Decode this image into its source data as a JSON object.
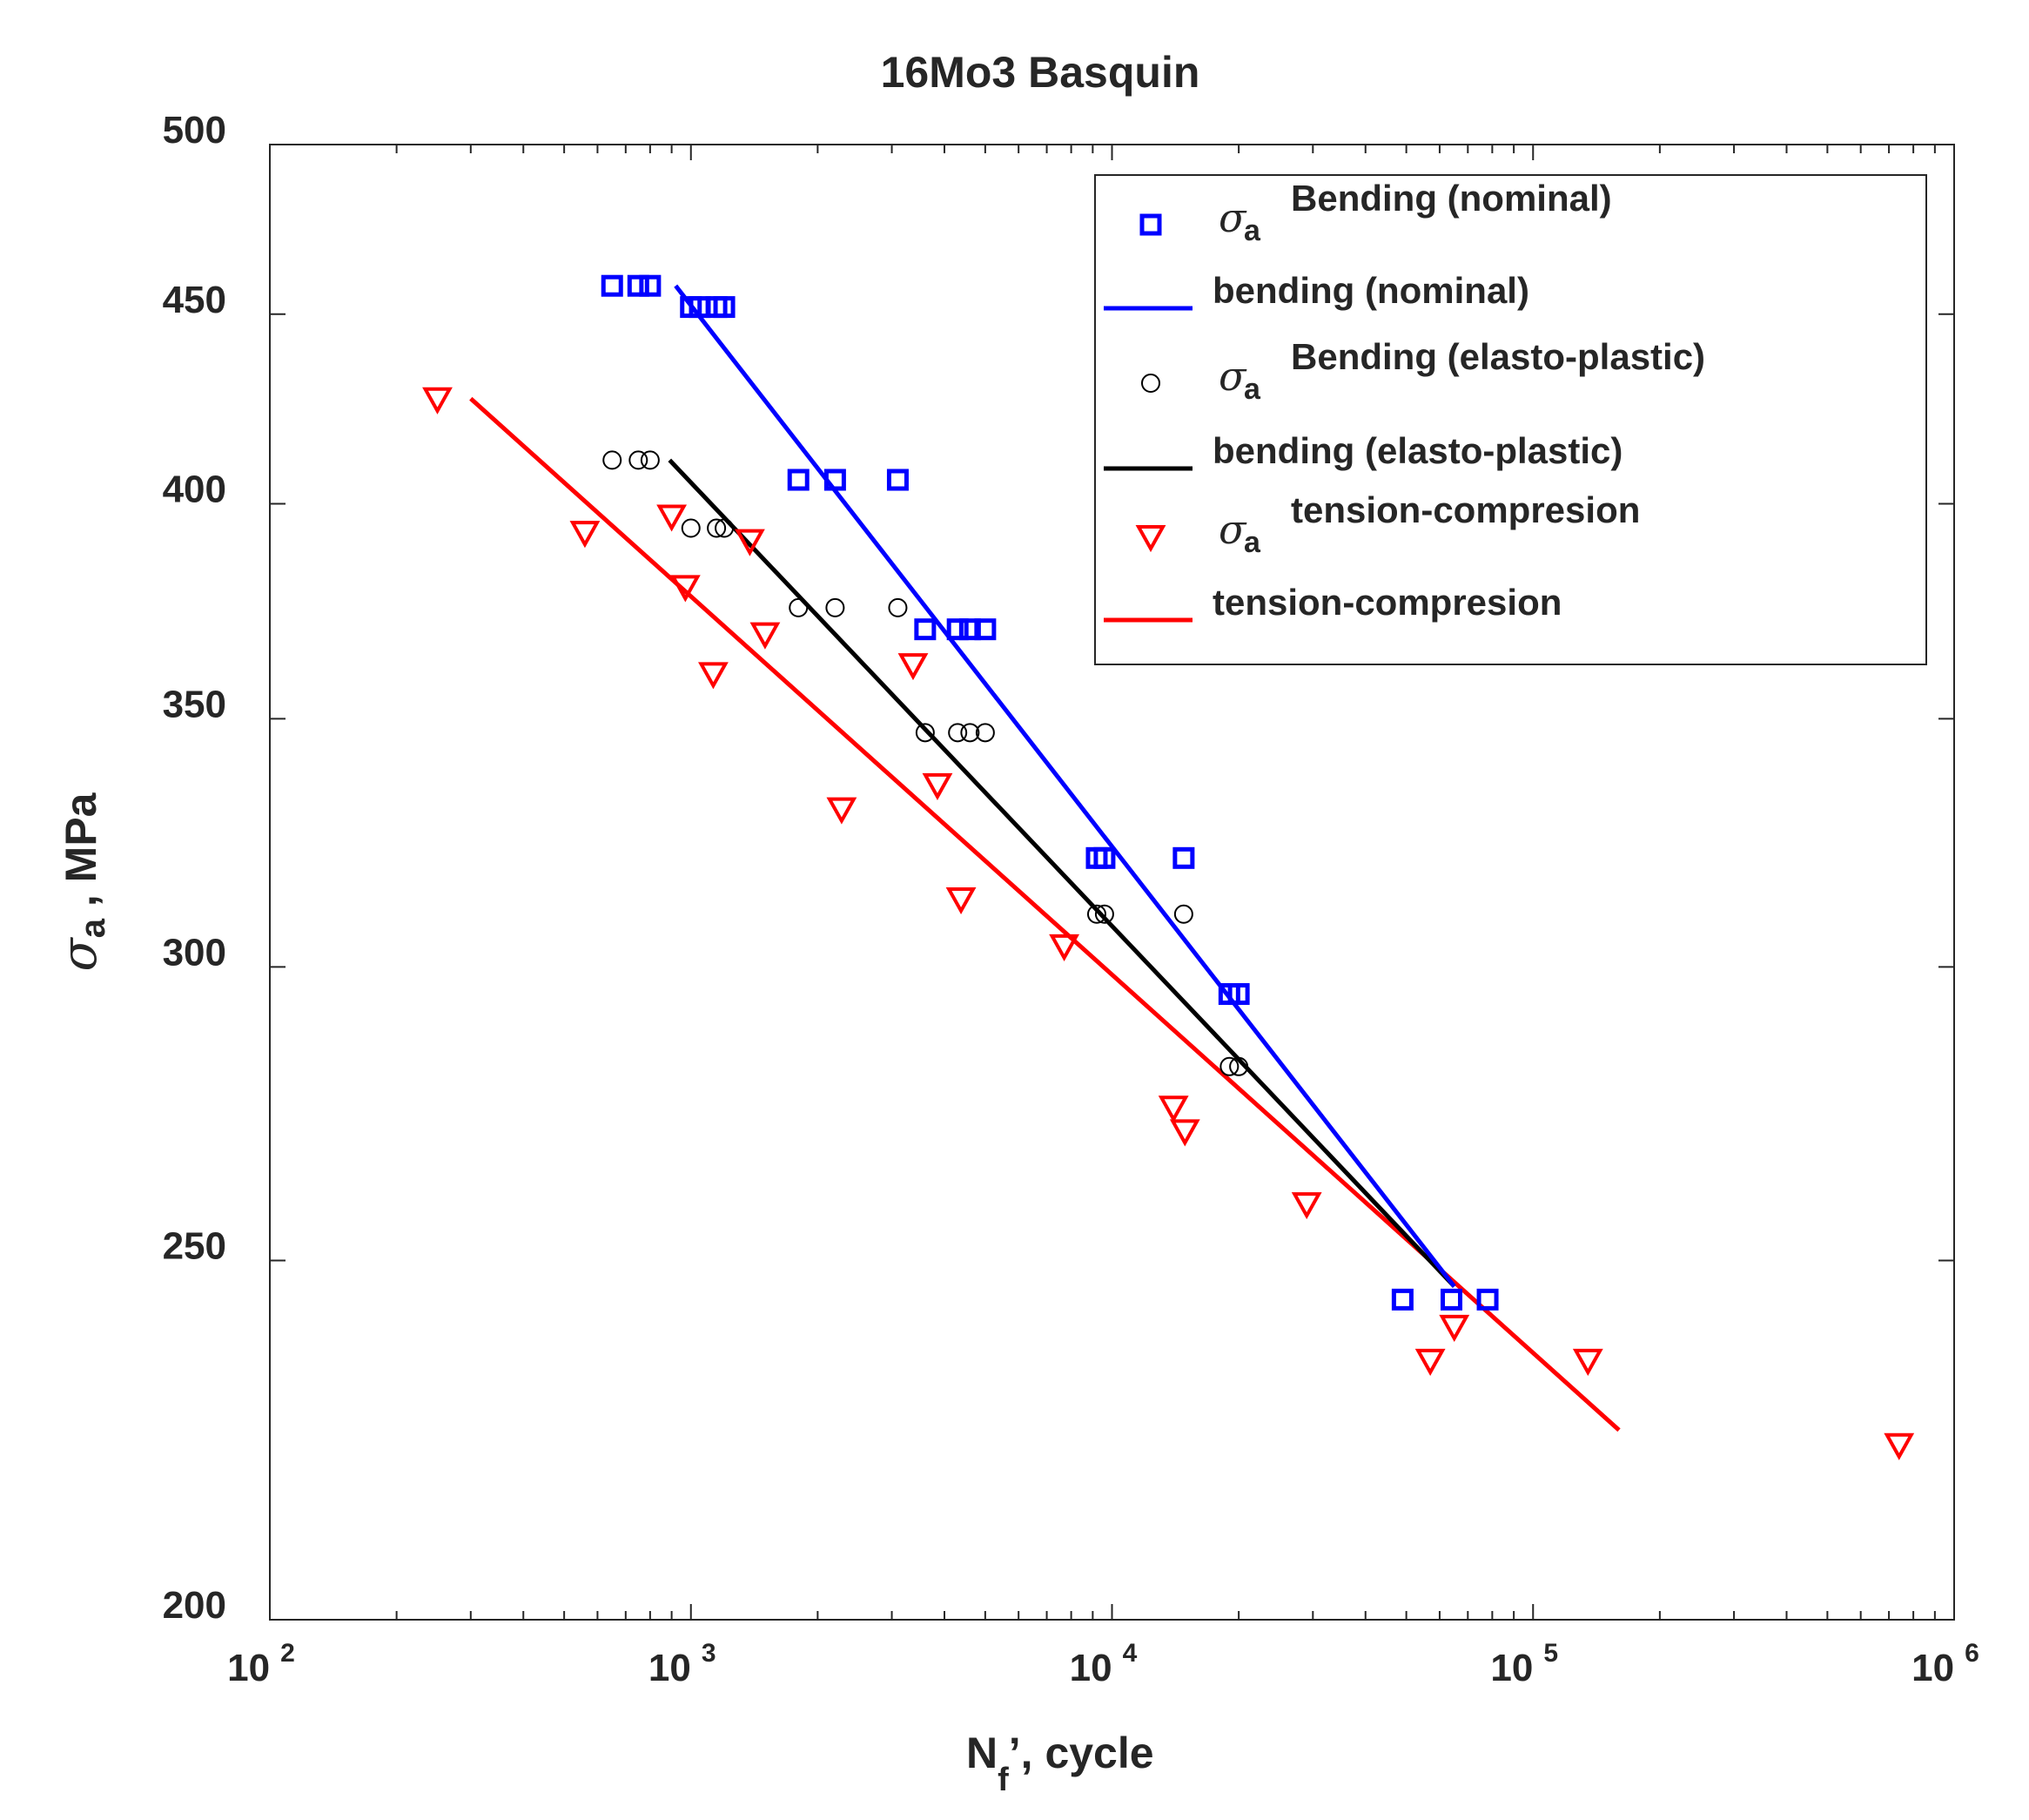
{
  "chart_data": {
    "type": "scatter",
    "title": "16Mo3 Basquin",
    "x_scale": "log",
    "y_scale": "log",
    "xlim": [
      100,
      1000000
    ],
    "ylim": [
      200,
      500
    ],
    "x_tick_bases": [
      "10",
      "10",
      "10",
      "10",
      "10"
    ],
    "x_tick_exponents": [
      "2",
      "3",
      "4",
      "5",
      "6"
    ],
    "x_tick_values": [
      100,
      1000,
      10000,
      100000,
      1000000
    ],
    "y_ticks": [
      200,
      250,
      300,
      350,
      400,
      450,
      500
    ],
    "y_tick_labels": [
      "200",
      "250",
      "300",
      "350",
      "400",
      "450",
      "500"
    ],
    "xlabel": {
      "main": "N",
      "subscript": "f",
      "suffix": "’, cycle"
    },
    "ylabel": {
      "symbol": "σ",
      "subscript": "a",
      "suffix": " , MPa"
    },
    "colors": {
      "blue": "#0000ff",
      "black": "#000000",
      "red": "#ff0000",
      "axis": "#262626"
    },
    "series": [
      {
        "name": "Bending (nominal)",
        "legend_symbol": "σ",
        "legend_subscript": "a",
        "kind": "markers",
        "marker": "square",
        "color": "#0000ff",
        "x": [
          650,
          750,
          800,
          1000,
          1050,
          1150,
          1200,
          1800,
          2200,
          3100,
          3600,
          4300,
          4600,
          5000,
          9200,
          9600,
          14800,
          19000,
          20000,
          49000,
          64000,
          78000
        ],
        "y": [
          458,
          458,
          458,
          452,
          452,
          452,
          452,
          406,
          406,
          406,
          370,
          370,
          370,
          370,
          321,
          321,
          321,
          295,
          295,
          244,
          244,
          244
        ]
      },
      {
        "name": "bending (nominal)",
        "kind": "line",
        "color": "#0000ff",
        "x": [
          920,
          65000
        ],
        "y": [
          458,
          246
        ]
      },
      {
        "name": "Bending (elasto-plastic)",
        "legend_symbol": "σ",
        "legend_subscript": "a",
        "kind": "markers",
        "marker": "circle",
        "color": "#000000",
        "x": [
          650,
          750,
          800,
          1000,
          1150,
          1200,
          1800,
          2200,
          3100,
          3600,
          4300,
          4600,
          5000,
          9200,
          9600,
          14800,
          19000,
          20000
        ],
        "y": [
          411,
          411,
          411,
          394,
          394,
          394,
          375,
          375,
          375,
          347,
          347,
          347,
          347,
          310,
          310,
          310,
          282,
          282
        ]
      },
      {
        "name": "bending (elasto-plastic)",
        "kind": "line",
        "color": "#000000",
        "x": [
          890,
          65000
        ],
        "y": [
          411,
          246
        ]
      },
      {
        "name": "tension-compresion",
        "legend_symbol": "σ",
        "legend_subscript": "a",
        "kind": "markers",
        "marker": "triangle-down",
        "color": "#ff0000",
        "x": [
          250,
          560,
          900,
          970,
          1130,
          1380,
          1500,
          2280,
          3370,
          3850,
          4380,
          7700,
          14000,
          14900,
          29000,
          57000,
          65000,
          135000,
          740000
        ],
        "y": [
          427,
          393,
          397,
          380,
          360,
          391,
          369,
          331,
          362,
          336,
          313,
          304,
          275,
          271,
          259,
          235,
          240,
          235,
          223
        ]
      },
      {
        "name": "tension-compresion",
        "kind": "line",
        "color": "#ff0000",
        "x": [
          300,
          160000
        ],
        "y": [
          427,
          225
        ]
      }
    ],
    "legend": {
      "placement": "top-right",
      "entries": [
        {
          "symbol": "σ",
          "subscript": "a",
          "label": "Bending (nominal)",
          "kind": "square",
          "color": "#0000ff"
        },
        {
          "label": "bending (nominal)",
          "kind": "line",
          "color": "#0000ff"
        },
        {
          "symbol": "σ",
          "subscript": "a",
          "label": "Bending (elasto-plastic)",
          "kind": "circle",
          "color": "#000000"
        },
        {
          "label": "bending (elasto-plastic)",
          "kind": "line",
          "color": "#000000"
        },
        {
          "symbol": "σ",
          "subscript": "a",
          "label": "tension-compresion",
          "kind": "triangle-down",
          "color": "#ff0000"
        },
        {
          "label": "tension-compresion",
          "kind": "line",
          "color": "#ff0000"
        }
      ]
    }
  }
}
